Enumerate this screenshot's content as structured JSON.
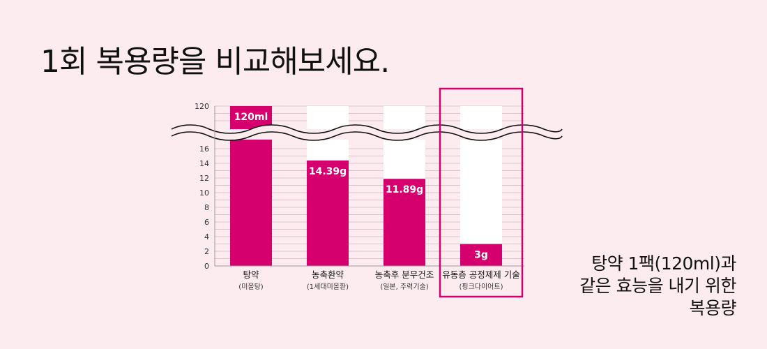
{
  "title": "1회 복용량을 비교해보세요.",
  "note_lines": [
    "탕약 1팩(120ml)과",
    "같은 효능을 내기 위한",
    "복용량"
  ],
  "colors": {
    "background": "#fcecf0",
    "bar": "#d5006d",
    "bar_track": "#ffffff",
    "highlight_box": "#d5006d",
    "gridline": "#dcc4ca",
    "text": "#111111"
  },
  "chart_data": {
    "type": "bar",
    "categories": [
      "탕약",
      "농축환약",
      "농축후 분무건조",
      "유동층 공정제제 기술"
    ],
    "sublabels": [
      "(미올탕)",
      "(1세대미올환)",
      "(일본, 주력기술)",
      "(핑크다이어트)"
    ],
    "values": [
      120,
      14.39,
      11.89,
      3
    ],
    "value_labels": [
      "120ml",
      "14.39g",
      "11.89g",
      "3g"
    ],
    "y_ticks_lower": [
      0,
      2,
      4,
      6,
      8,
      10,
      12,
      14,
      16
    ],
    "y_tick_upper": 120,
    "y_break": true,
    "grid": true,
    "highlighted_category_index": 3,
    "xlabel": "",
    "ylabel": ""
  }
}
